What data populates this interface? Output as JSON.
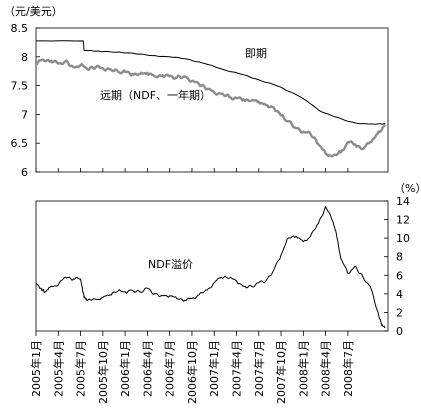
{
  "chart_data": [
    {
      "type": "line",
      "unit_label": "（元/美元）",
      "ylim": [
        6,
        8.5
      ],
      "yticks": [
        "8.5",
        "8",
        "7.5",
        "7",
        "6.5",
        "6"
      ],
      "grid": false,
      "series": [
        {
          "name": "即期",
          "color": "#000000",
          "points": [
            [
              2005.0,
              8.277
            ],
            [
              2005.53,
              8.277
            ],
            [
              2005.54,
              8.11
            ],
            [
              2005.7,
              8.1
            ],
            [
              2005.9,
              8.08
            ],
            [
              2006.1,
              8.06
            ],
            [
              2006.3,
              8.02
            ],
            [
              2006.5,
              8.0
            ],
            [
              2006.7,
              7.96
            ],
            [
              2006.9,
              7.88
            ],
            [
              2007.1,
              7.78
            ],
            [
              2007.3,
              7.7
            ],
            [
              2007.5,
              7.6
            ],
            [
              2007.7,
              7.5
            ],
            [
              2007.9,
              7.36
            ],
            [
              2008.05,
              7.22
            ],
            [
              2008.2,
              7.05
            ],
            [
              2008.35,
              6.96
            ],
            [
              2008.5,
              6.88
            ],
            [
              2008.65,
              6.84
            ],
            [
              2008.8,
              6.83
            ],
            [
              2008.92,
              6.84
            ]
          ]
        },
        {
          "name": "远期（NDF、一年期）",
          "color": "#8c8c8c",
          "points": [
            [
              2005.0,
              7.88
            ],
            [
              2005.08,
              7.95
            ],
            [
              2005.17,
              7.93
            ],
            [
              2005.25,
              7.88
            ],
            [
              2005.33,
              7.92
            ],
            [
              2005.42,
              7.82
            ],
            [
              2005.5,
              7.86
            ],
            [
              2005.58,
              7.78
            ],
            [
              2005.67,
              7.82
            ],
            [
              2005.75,
              7.8
            ],
            [
              2005.83,
              7.78
            ],
            [
              2005.92,
              7.74
            ],
            [
              2006.0,
              7.74
            ],
            [
              2006.08,
              7.7
            ],
            [
              2006.17,
              7.7
            ],
            [
              2006.25,
              7.72
            ],
            [
              2006.33,
              7.66
            ],
            [
              2006.42,
              7.68
            ],
            [
              2006.5,
              7.66
            ],
            [
              2006.58,
              7.64
            ],
            [
              2006.67,
              7.66
            ],
            [
              2006.75,
              7.58
            ],
            [
              2006.83,
              7.52
            ],
            [
              2006.92,
              7.44
            ],
            [
              2007.0,
              7.38
            ],
            [
              2007.08,
              7.36
            ],
            [
              2007.17,
              7.3
            ],
            [
              2007.25,
              7.28
            ],
            [
              2007.33,
              7.26
            ],
            [
              2007.42,
              7.24
            ],
            [
              2007.5,
              7.22
            ],
            [
              2007.58,
              7.16
            ],
            [
              2007.67,
              7.12
            ],
            [
              2007.75,
              6.98
            ],
            [
              2007.83,
              6.88
            ],
            [
              2007.92,
              6.76
            ],
            [
              2008.0,
              6.7
            ],
            [
              2008.08,
              6.66
            ],
            [
              2008.17,
              6.48
            ],
            [
              2008.25,
              6.32
            ],
            [
              2008.33,
              6.28
            ],
            [
              2008.42,
              6.34
            ],
            [
              2008.5,
              6.52
            ],
            [
              2008.58,
              6.48
            ],
            [
              2008.67,
              6.4
            ],
            [
              2008.75,
              6.52
            ],
            [
              2008.83,
              6.66
            ],
            [
              2008.92,
              6.82
            ]
          ]
        }
      ]
    },
    {
      "type": "line",
      "unit_label": "（%）",
      "ylim": [
        0,
        14
      ],
      "yticks": [
        "14",
        "12",
        "10",
        "8",
        "6",
        "4",
        "2",
        "0"
      ],
      "grid": false,
      "series": [
        {
          "name": "NDF溢价",
          "color": "#000000",
          "points": [
            [
              2005.0,
              5.2
            ],
            [
              2005.05,
              4.6
            ],
            [
              2005.1,
              4.2
            ],
            [
              2005.17,
              4.8
            ],
            [
              2005.25,
              5.0
            ],
            [
              2005.33,
              5.8
            ],
            [
              2005.42,
              5.6
            ],
            [
              2005.5,
              5.6
            ],
            [
              2005.54,
              3.6
            ],
            [
              2005.58,
              3.3
            ],
            [
              2005.67,
              3.4
            ],
            [
              2005.75,
              3.6
            ],
            [
              2005.83,
              3.9
            ],
            [
              2005.92,
              4.3
            ],
            [
              2006.0,
              4.2
            ],
            [
              2006.08,
              4.4
            ],
            [
              2006.17,
              4.2
            ],
            [
              2006.25,
              4.6
            ],
            [
              2006.33,
              4.0
            ],
            [
              2006.42,
              3.8
            ],
            [
              2006.5,
              3.8
            ],
            [
              2006.58,
              3.5
            ],
            [
              2006.67,
              3.3
            ],
            [
              2006.75,
              3.5
            ],
            [
              2006.83,
              3.9
            ],
            [
              2006.92,
              4.4
            ],
            [
              2007.0,
              5.2
            ],
            [
              2007.08,
              5.8
            ],
            [
              2007.17,
              5.7
            ],
            [
              2007.25,
              5.4
            ],
            [
              2007.33,
              4.8
            ],
            [
              2007.42,
              4.8
            ],
            [
              2007.5,
              5.2
            ],
            [
              2007.58,
              5.4
            ],
            [
              2007.67,
              6.6
            ],
            [
              2007.75,
              8.2
            ],
            [
              2007.83,
              10.0
            ],
            [
              2007.92,
              10.2
            ],
            [
              2008.0,
              9.6
            ],
            [
              2008.08,
              10.2
            ],
            [
              2008.17,
              11.6
            ],
            [
              2008.25,
              13.4
            ],
            [
              2008.33,
              11.8
            ],
            [
              2008.37,
              10.5
            ],
            [
              2008.42,
              7.8
            ],
            [
              2008.5,
              6.2
            ],
            [
              2008.58,
              7.0
            ],
            [
              2008.67,
              5.8
            ],
            [
              2008.75,
              4.8
            ],
            [
              2008.83,
              2.2
            ],
            [
              2008.88,
              0.6
            ],
            [
              2008.92,
              0.4
            ]
          ]
        }
      ]
    }
  ],
  "x_ticks": [
    "2005年1月",
    "2005年4月",
    "2005年7月",
    "2005年10月",
    "2006年1月",
    "2006年4月",
    "2006年7月",
    "2006年10月",
    "2007年1月",
    "2007年4月",
    "2007年7月",
    "2007年10月",
    "2008年1月",
    "2008年4月",
    "2008年7月"
  ]
}
